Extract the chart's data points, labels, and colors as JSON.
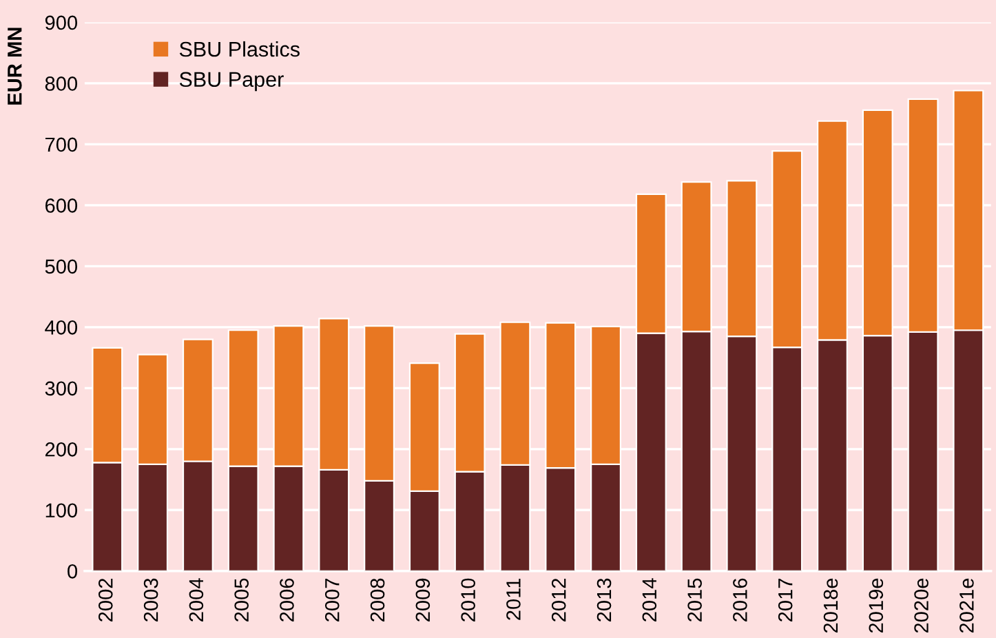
{
  "chart_data": {
    "type": "bar",
    "stacked": true,
    "ylabel": "EUR MN",
    "categories": [
      "2002",
      "2003",
      "2004",
      "2005",
      "2006",
      "2007",
      "2008",
      "2009",
      "2010",
      "2011",
      "2012",
      "2013",
      "2014",
      "2015",
      "2016",
      "2017",
      "2018e",
      "2019e",
      "2020e",
      "2021e"
    ],
    "series": [
      {
        "name": "SBU Paper",
        "color": "#622423",
        "values": [
          178,
          175,
          180,
          172,
          172,
          166,
          148,
          131,
          163,
          174,
          169,
          175,
          390,
          393,
          385,
          367,
          379,
          386,
          392,
          395
        ]
      },
      {
        "name": "SBU Plastics",
        "color": "#e87722",
        "values": [
          188,
          180,
          200,
          223,
          230,
          248,
          254,
          210,
          226,
          234,
          238,
          226,
          228,
          245,
          255,
          322,
          359,
          370,
          382,
          393
        ]
      }
    ],
    "ylim": [
      0,
      900
    ],
    "yticks": [
      0,
      100,
      200,
      300,
      400,
      500,
      600,
      700,
      800,
      900
    ],
    "grid": "y",
    "legend": "top left"
  }
}
